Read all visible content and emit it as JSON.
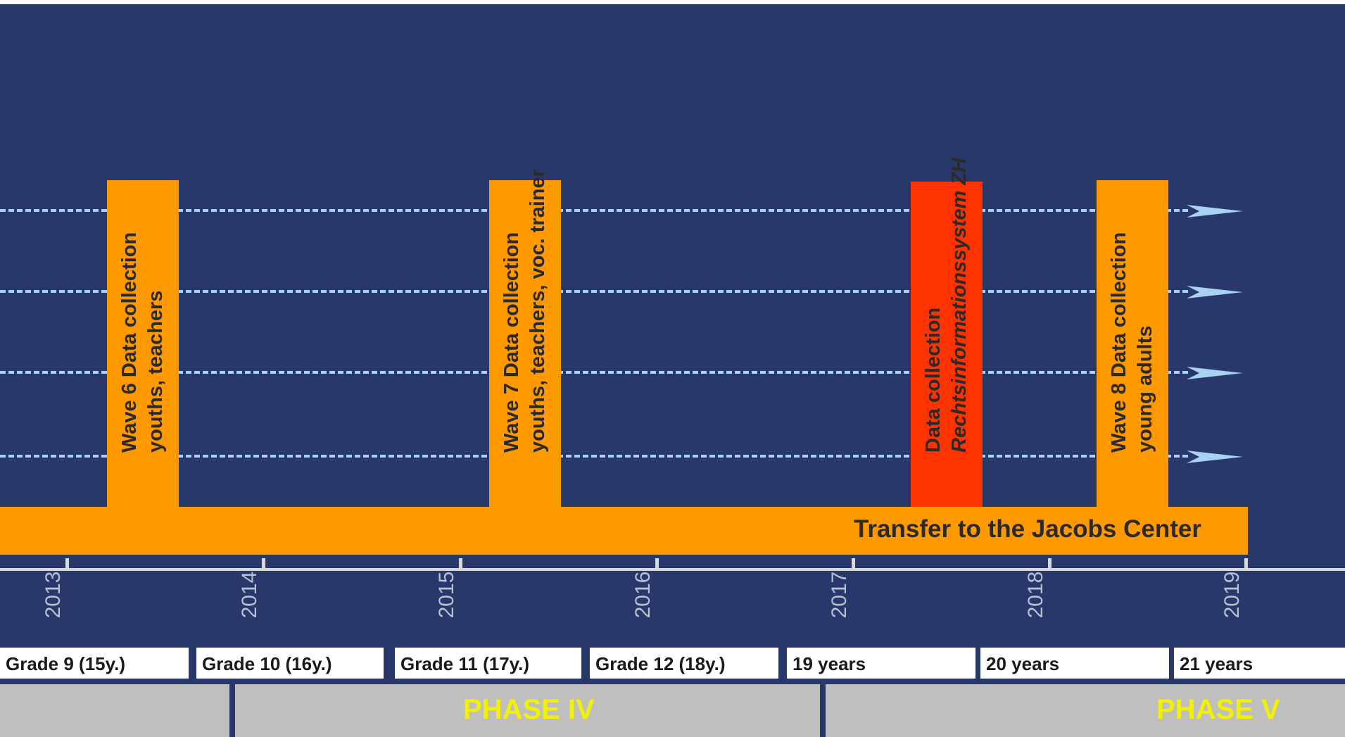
{
  "bars": [
    {
      "id": "wave6",
      "lines": [
        "Wave 6  Data collection",
        "youths, teachers"
      ],
      "color": "#ff9900",
      "italic_line": -1
    },
    {
      "id": "wave7",
      "lines": [
        "Wave 7  Data collection",
        "youths, teachers, voc. trainer"
      ],
      "color": "#ff9900",
      "italic_line": -1
    },
    {
      "id": "rechts",
      "lines": [
        "Data collection",
        "Rechtsinformationssystem ZH"
      ],
      "color": "#ff3300",
      "italic_line": 1
    },
    {
      "id": "wave8",
      "lines": [
        "Wave 8  Data collection",
        "young adults"
      ],
      "color": "#ff9900",
      "italic_line": -1
    }
  ],
  "transfer_label": "Transfer to the Jacobs Center",
  "years": [
    "2013",
    "2014",
    "2015",
    "2016",
    "2017",
    "2018",
    "2019"
  ],
  "stages": [
    "Grade 9 (15y.)",
    "Grade 10 (16y.)",
    "Grade 11 (17y.)",
    "Grade 12 (18y.)",
    "19 years",
    "20 years",
    "21 years"
  ],
  "phases": [
    "",
    "PHASE IV",
    "PHASE V"
  ],
  "colors": {
    "background": "#28386b",
    "bar_orange": "#ff9900",
    "bar_red": "#ff3300",
    "dash_line": "#a9d2f2",
    "phase_text": "#f2f200",
    "phase_bg": "#bfbfbf"
  }
}
